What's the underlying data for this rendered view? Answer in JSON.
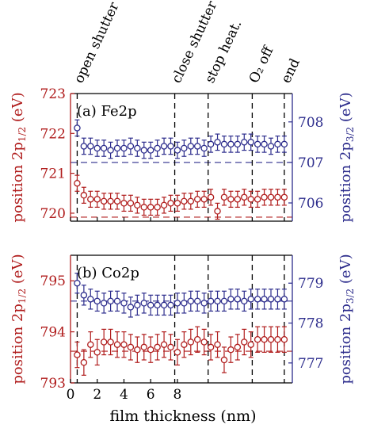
{
  "chart_data": [
    {
      "type": "scatter",
      "panel_label": "(a) Fe2p",
      "x": [
        0.5,
        1.0,
        1.5,
        2.0,
        2.5,
        3.0,
        3.5,
        4.0,
        4.5,
        5.0,
        5.5,
        6.0,
        6.5,
        7.0,
        7.5,
        8.0,
        8.5,
        9.0,
        9.5,
        10.0,
        10.5,
        11.0,
        11.5,
        12.0,
        12.5,
        13.0,
        13.5,
        14.0,
        14.5,
        15.0,
        15.5,
        16.0
      ],
      "series": [
        {
          "name": "2p1/2",
          "axis": "left",
          "color": "#b01c1c",
          "values": [
            720.75,
            720.45,
            720.35,
            720.35,
            720.3,
            720.3,
            720.3,
            720.25,
            720.25,
            720.2,
            720.15,
            720.15,
            720.15,
            720.2,
            720.25,
            720.25,
            720.3,
            720.3,
            720.35,
            720.35,
            720.4,
            720.05,
            720.4,
            720.35,
            720.35,
            720.4,
            720.35,
            720.35,
            720.4,
            720.4,
            720.4,
            720.4
          ],
          "error": 0.2
        },
        {
          "name": "2p3/2",
          "axis": "right",
          "color": "#2c2c8c",
          "values": [
            707.85,
            707.4,
            707.4,
            707.35,
            707.35,
            707.3,
            707.35,
            707.35,
            707.4,
            707.35,
            707.3,
            707.3,
            707.35,
            707.4,
            707.4,
            707.3,
            707.35,
            707.4,
            707.4,
            707.35,
            707.45,
            707.5,
            707.45,
            707.45,
            707.45,
            707.5,
            707.5,
            707.45,
            707.45,
            707.4,
            707.45,
            707.45
          ],
          "error": 0.2
        }
      ],
      "ylim_left": [
        719.8,
        723
      ],
      "yticks_left": [
        "720",
        "721",
        "722",
        "723"
      ],
      "ylim_right": [
        705.55,
        708.7
      ],
      "yticks_right": [
        "706",
        "707",
        "708"
      ],
      "ylabel_left": "position 2p",
      "ylabel_left_sub": "1/2",
      "ylabel_left_unit": "(eV)",
      "ylabel_right": "position 2p",
      "ylabel_right_sub": "3/2",
      "ylabel_right_unit": "(eV)",
      "ref_left": 719.9,
      "ref_right": 707.0
    },
    {
      "type": "scatter",
      "panel_label": "(b) Co2p",
      "x": [
        0.5,
        1.0,
        1.5,
        2.0,
        2.5,
        3.0,
        3.5,
        4.0,
        4.5,
        5.0,
        5.5,
        6.0,
        6.5,
        7.0,
        7.5,
        8.0,
        8.5,
        9.0,
        9.5,
        10.0,
        10.5,
        11.0,
        11.5,
        12.0,
        12.5,
        13.0,
        13.5,
        14.0,
        14.5,
        15.0,
        15.5,
        16.0
      ],
      "series": [
        {
          "name": "2p1/2",
          "axis": "left",
          "color": "#b01c1c",
          "values": [
            793.55,
            793.4,
            793.75,
            793.6,
            793.8,
            793.8,
            793.75,
            793.75,
            793.7,
            793.65,
            793.7,
            793.65,
            793.7,
            793.75,
            793.7,
            793.6,
            793.75,
            793.8,
            793.85,
            793.8,
            793.7,
            793.75,
            793.45,
            793.65,
            793.7,
            793.8,
            793.75,
            793.85,
            793.85,
            793.85,
            793.85,
            793.85
          ],
          "error": 0.25
        },
        {
          "name": "2p3/2",
          "axis": "right",
          "color": "#2c2c8c",
          "values": [
            779.0,
            778.7,
            778.6,
            778.55,
            778.5,
            778.55,
            778.55,
            778.5,
            778.4,
            778.45,
            778.5,
            778.45,
            778.45,
            778.45,
            778.45,
            778.5,
            778.5,
            778.55,
            778.55,
            778.5,
            778.55,
            778.55,
            778.55,
            778.6,
            778.6,
            778.55,
            778.6,
            778.6,
            778.6,
            778.6,
            778.6,
            778.6
          ],
          "error": 0.25
        }
      ],
      "ylim_left": [
        793,
        795.5
      ],
      "yticks_left": [
        "793",
        "794",
        "795"
      ],
      "ylim_right": [
        776.5,
        779.7
      ],
      "yticks_right": [
        "777",
        "778",
        "779"
      ],
      "ylabel_left": "position 2p",
      "ylabel_left_sub": "1/2",
      "ylabel_left_unit": "(eV)",
      "ylabel_right": "position 2p",
      "ylabel_right_sub": "3/2",
      "ylabel_right_unit": "(eV)",
      "ref_left": 793.62,
      "ref_right": 778.55
    }
  ],
  "xaxis": {
    "xlim": [
      0,
      16.6
    ],
    "ticks": [
      0,
      2,
      4,
      6,
      8
    ],
    "tick_labels": [
      "0",
      "2",
      "4",
      "6",
      "8"
    ],
    "label": "film thickness (nm)"
  },
  "events": [
    {
      "x": 0.5,
      "label": "open shutter"
    },
    {
      "x": 7.8,
      "label": "close shutter"
    },
    {
      "x": 10.3,
      "label": "stop heat."
    },
    {
      "x": 13.6,
      "label": "O₂ off"
    },
    {
      "x": 16.0,
      "label": "end"
    }
  ],
  "colors": {
    "left_axis": "#b01c1c",
    "right_axis": "#2c2c8c",
    "axis": "#000000"
  }
}
